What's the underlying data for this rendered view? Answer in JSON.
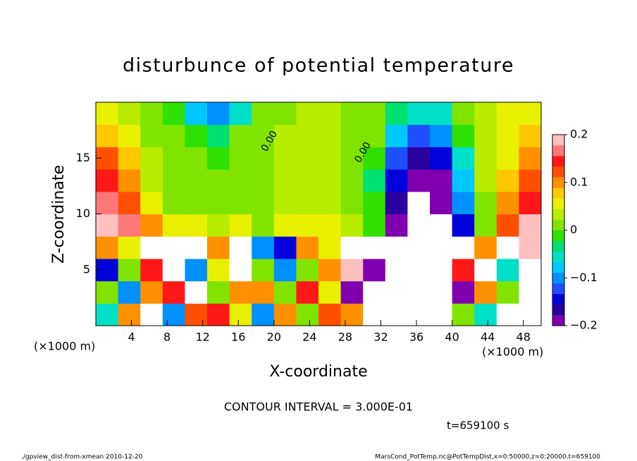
{
  "chart_data": {
    "type": "heatmap",
    "title": "disturbunce of potential temperature",
    "x_label": "X-coordinate",
    "y_label": "Z-coordinate",
    "x_unit": "(×1000 m)",
    "xlim": [
      0,
      50
    ],
    "ylim": [
      0,
      20
    ],
    "xticks": [
      4,
      8,
      12,
      16,
      20,
      24,
      28,
      32,
      36,
      40,
      44,
      48
    ],
    "yticks": [
      5,
      10,
      15
    ],
    "z": [
      [
        -0.05,
        0.1,
        0.3,
        -0.1,
        0.12,
        0.15,
        0.05,
        -0.1,
        0.1,
        0.0,
        0.12,
        0.1,
        -0.25,
        0.3,
        0.3,
        0.3,
        0.0,
        -0.05,
        0.3,
        0.3
      ],
      [
        0.0,
        -0.1,
        0.1,
        0.15,
        0.3,
        0.0,
        0.1,
        0.1,
        0.0,
        0.15,
        0.05,
        -0.2,
        0.3,
        -0.3,
        0.3,
        0.3,
        -0.2,
        0.1,
        0.0,
        0.3
      ],
      [
        -0.15,
        0.0,
        0.15,
        0.3,
        -0.1,
        0.05,
        0.3,
        0.0,
        -0.1,
        0.0,
        0.1,
        0.2,
        -0.2,
        0.3,
        -0.25,
        0.3,
        0.15,
        -0.3,
        -0.05,
        0.3
      ],
      [
        0.1,
        0.05,
        0.3,
        -0.3,
        0.3,
        0.1,
        0.3,
        -0.1,
        -0.15,
        0.1,
        0.05,
        0.3,
        -0.25,
        0.3,
        -0.3,
        0.25,
        -0.25,
        0.1,
        0.3,
        0.2
      ],
      [
        0.2,
        0.16,
        0.1,
        0.06,
        0.05,
        0.04,
        0.05,
        0.0,
        0.05,
        0.06,
        0.06,
        0.04,
        -0.02,
        -0.2,
        -0.25,
        -0.25,
        -0.15,
        0.0,
        0.12,
        0.18
      ],
      [
        0.16,
        0.12,
        0.06,
        0.02,
        0.01,
        0.01,
        0.02,
        0.01,
        0.03,
        0.04,
        0.04,
        0.02,
        -0.02,
        -0.16,
        -0.22,
        -0.2,
        -0.1,
        0.02,
        0.1,
        0.15
      ],
      [
        0.14,
        0.1,
        0.04,
        0.01,
        0.0,
        0.0,
        0.01,
        0.02,
        0.03,
        0.03,
        0.03,
        0.02,
        -0.03,
        -0.15,
        -0.2,
        -0.18,
        -0.08,
        0.03,
        0.07,
        0.12
      ],
      [
        0.12,
        0.08,
        0.03,
        0.0,
        0.0,
        -0.01,
        0.01,
        0.02,
        0.03,
        0.03,
        0.03,
        0.02,
        -0.02,
        -0.12,
        -0.16,
        -0.14,
        -0.05,
        0.04,
        0.06,
        0.1
      ],
      [
        0.08,
        0.05,
        0.02,
        0.0,
        -0.02,
        -0.03,
        0.0,
        0.02,
        0.03,
        0.03,
        0.03,
        0.02,
        0.0,
        -0.08,
        -0.12,
        -0.1,
        -0.02,
        0.04,
        0.06,
        0.08
      ],
      [
        0.05,
        0.03,
        0.0,
        -0.02,
        -0.08,
        -0.1,
        -0.05,
        0.0,
        0.02,
        0.03,
        0.03,
        0.02,
        0.02,
        -0.03,
        -0.06,
        -0.05,
        0.0,
        0.03,
        0.05,
        0.06
      ]
    ],
    "colorbar": {
      "lim": [
        -0.2,
        0.2
      ],
      "ticks": [
        {
          "value": -0.2,
          "label": "−0.2"
        },
        {
          "value": -0.1,
          "label": "−0.1"
        },
        0,
        0.1,
        0.2
      ],
      "colors": [
        "#8000b0",
        "#2a00a0",
        "#0000d8",
        "#1e50ff",
        "#0090ff",
        "#00c8ff",
        "#00e0c8",
        "#00e070",
        "#30e000",
        "#80e400",
        "#b8ec00",
        "#e8f000",
        "#ffc800",
        "#ff9000",
        "#ff5000",
        "#ff1818",
        "#ff7878",
        "#ffc0c0"
      ]
    },
    "contour_labels": [
      {
        "text": "0.00",
        "x": 19.5,
        "y": 16.5
      },
      {
        "text": "0.00",
        "x": 30,
        "y": 15.5
      }
    ],
    "contour_interval": "CONTOUR INTERVAL = 3.000E-01",
    "time_label": "t=659100 s",
    "footer_left": "./gpview_dist-from-xmean  2010-12-20",
    "footer_right": "MarsCond_PotTemp.nc@PotTempDist,x=0:50000,z=0:20000,t=659100"
  }
}
